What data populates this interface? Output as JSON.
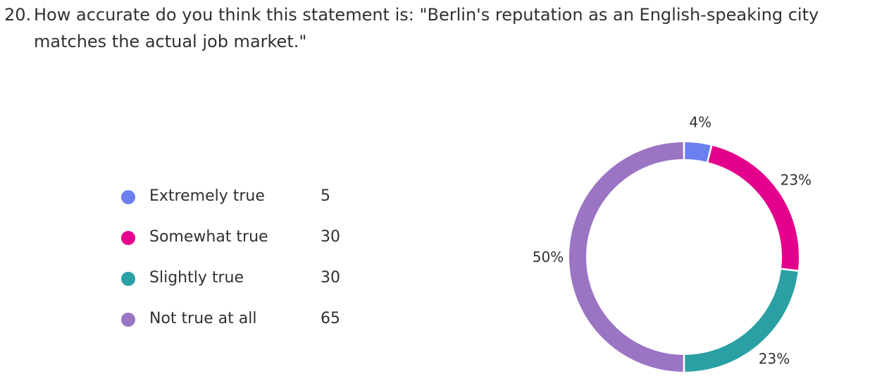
{
  "question": {
    "number": "20.",
    "line1": "How accurate do you think this statement is: \"Berlin's reputation as an English-speaking city",
    "line2": "matches the actual job market.\""
  },
  "chart_data": {
    "type": "pie",
    "categories": [
      "Extremely true",
      "Somewhat true",
      "Slightly true",
      "Not true at all"
    ],
    "values": [
      5,
      30,
      30,
      65
    ],
    "percent_labels": [
      "4%",
      "23%",
      "23%",
      "50%"
    ],
    "colors": [
      "#6b7ff0",
      "#e3008c",
      "#2aa0a4",
      "#9b74c4"
    ],
    "donut": true,
    "legend_position": "left"
  }
}
